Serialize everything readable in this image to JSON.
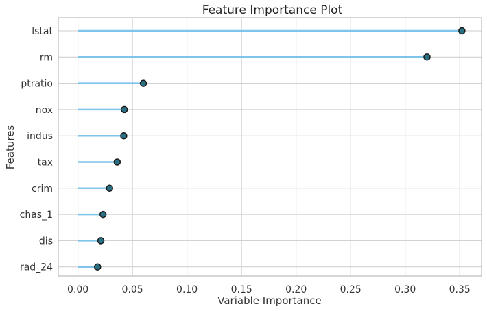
{
  "chart_data": {
    "type": "lollipop",
    "title": "Feature Importance Plot",
    "xlabel": "Variable Importance",
    "ylabel": "Features",
    "categories": [
      "lstat",
      "rm",
      "ptratio",
      "nox",
      "indus",
      "tax",
      "crim",
      "chas_1",
      "dis",
      "rad_24"
    ],
    "values": [
      0.352,
      0.32,
      0.06,
      0.0425,
      0.042,
      0.036,
      0.029,
      0.023,
      0.021,
      0.018
    ],
    "xlim": [
      -0.018,
      0.37
    ],
    "xticks": [
      0.0,
      0.05,
      0.1,
      0.15,
      0.2,
      0.25,
      0.3,
      0.35
    ],
    "xtick_labels": [
      "0.00",
      "0.05",
      "0.10",
      "0.15",
      "0.20",
      "0.25",
      "0.30",
      "0.35"
    ],
    "grid": true,
    "colors": {
      "stem": "#7fc4ea",
      "marker_fill": "#2b6f82",
      "marker_edge": "#1a1a1a",
      "grid": "#cccccc",
      "axis": "#bbbbbb",
      "text": "#333333",
      "title": "#222222"
    }
  }
}
